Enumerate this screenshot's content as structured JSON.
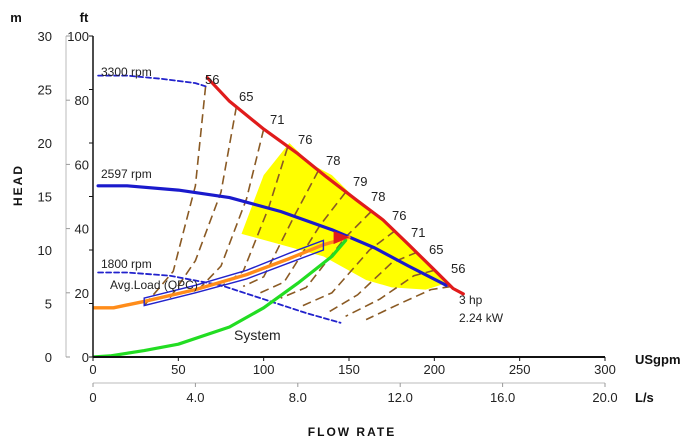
{
  "chart_data": {
    "type": "line",
    "xlabel": "FLOW RATE",
    "ylabel": "HEAD",
    "x_unit": "USgpm",
    "x2_unit": "L/s",
    "y_unit": "m",
    "y2_unit": "ft",
    "xlim": [
      0,
      300
    ],
    "ylim": [
      0,
      30
    ],
    "x_ticks": [
      "0",
      "50",
      "100",
      "150",
      "200",
      "250",
      "300"
    ],
    "x2_ticks": [
      "0",
      "4.0",
      "8.0",
      "12.0",
      "16.0",
      "20.0"
    ],
    "y_ticks": [
      "0",
      "5",
      "10",
      "15",
      "20",
      "25",
      "30"
    ],
    "y2_ticks": [
      "0",
      "20",
      "40",
      "60",
      "80",
      "100"
    ],
    "grid": false,
    "series": [
      {
        "name": "3300 rpm",
        "style": "dashed",
        "color": "#2222cc",
        "points": [
          [
            3,
            26.3
          ],
          [
            20,
            26.3
          ],
          [
            40,
            26
          ],
          [
            60,
            25.6
          ],
          [
            66,
            25.3
          ]
        ]
      },
      {
        "name": "2597 rpm",
        "style": "solid",
        "color": "#1a1acc",
        "points": [
          [
            3,
            16
          ],
          [
            20,
            16
          ],
          [
            50,
            15.6
          ],
          [
            80,
            14.9
          ],
          [
            110,
            13.6
          ],
          [
            140,
            11.9
          ],
          [
            165,
            10.2
          ],
          [
            185,
            8.5
          ],
          [
            207,
            6.7
          ]
        ]
      },
      {
        "name": "1800 rpm",
        "style": "dashed",
        "color": "#2222cc",
        "points": [
          [
            3,
            7.9
          ],
          [
            20,
            7.9
          ],
          [
            45,
            7.6
          ],
          [
            75,
            6.7
          ],
          [
            100,
            5.4
          ],
          [
            125,
            4.1
          ],
          [
            145,
            3.2
          ]
        ]
      },
      {
        "name": "3 hp",
        "style": "solid",
        "color": "#e01b1b",
        "points": [
          [
            67,
            26.1
          ],
          [
            80,
            23.9
          ],
          [
            100,
            21.3
          ],
          [
            120,
            19
          ],
          [
            137,
            16.8
          ],
          [
            155,
            14.6
          ],
          [
            170,
            12.8
          ],
          [
            185,
            10.5
          ],
          [
            199,
            8.3
          ],
          [
            211,
            6.4
          ],
          [
            217,
            5.9
          ]
        ]
      },
      {
        "name": "Avg.Load (QPC)",
        "style": "solid",
        "color": "#ff8c1a",
        "points": [
          [
            0,
            4.6
          ],
          [
            12,
            4.6
          ],
          [
            30,
            5.2
          ],
          [
            60,
            6.3
          ],
          [
            90,
            7.7
          ],
          [
            115,
            9.2
          ],
          [
            135,
            10.5
          ],
          [
            150,
            11.2
          ]
        ]
      },
      {
        "name": "System",
        "style": "solid",
        "color": "#22dd22",
        "points": [
          [
            0,
            0
          ],
          [
            10,
            0.1
          ],
          [
            30,
            0.6
          ],
          [
            50,
            1.2
          ],
          [
            80,
            2.8
          ],
          [
            100,
            4.6
          ],
          [
            120,
            6.9
          ],
          [
            140,
            9.4
          ],
          [
            148,
            10.9
          ]
        ]
      }
    ],
    "system_label": "System",
    "motor_label": [
      "3 hp",
      "2.24 kW"
    ],
    "efficiency_labels": [
      "56",
      "65",
      "71",
      "76",
      "78",
      "79",
      "78",
      "76",
      "71",
      "65",
      "56"
    ]
  }
}
